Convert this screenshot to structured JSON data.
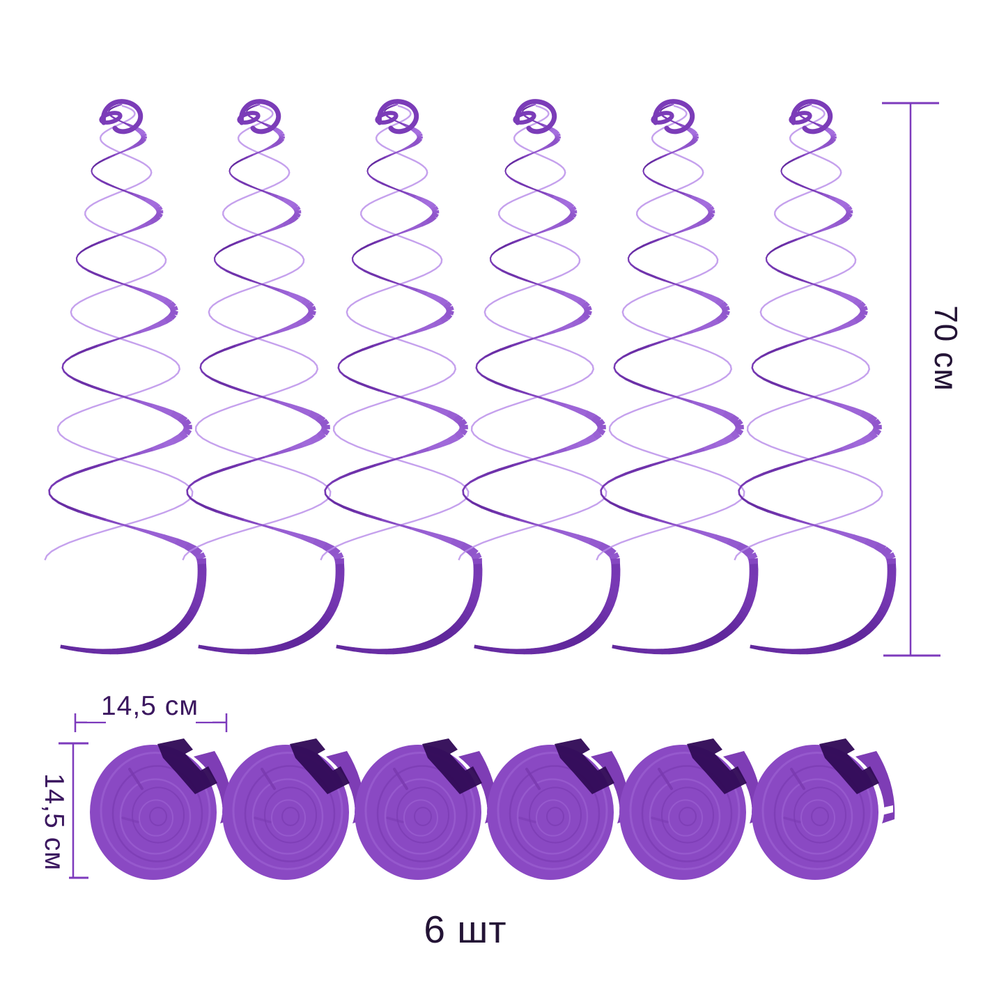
{
  "annotations": {
    "swirl_height": "70 см",
    "coil_width": "14,5 см",
    "coil_diameter": "14,5 см",
    "quantity": "6 шт"
  },
  "counts": {
    "swirls": 6,
    "coils": 6
  },
  "colors": {
    "background": "#ffffff",
    "ribbon_light": "#ab76e4",
    "ribbon_mid": "#7b3cb8",
    "ribbon_dark": "#4a1684",
    "ribbon_back_strand": "#b78ae9",
    "disc_body": "#8a49c3",
    "disc_body_shade": "#7e3db5",
    "disc_ring_light": "#9c63d2",
    "disc_ring_dark": "#7a3ab0",
    "disc_tab": "#320b57",
    "dimension_line": "#7d3abc",
    "label_primary": "#231335",
    "label_accent": "#3b175f"
  }
}
